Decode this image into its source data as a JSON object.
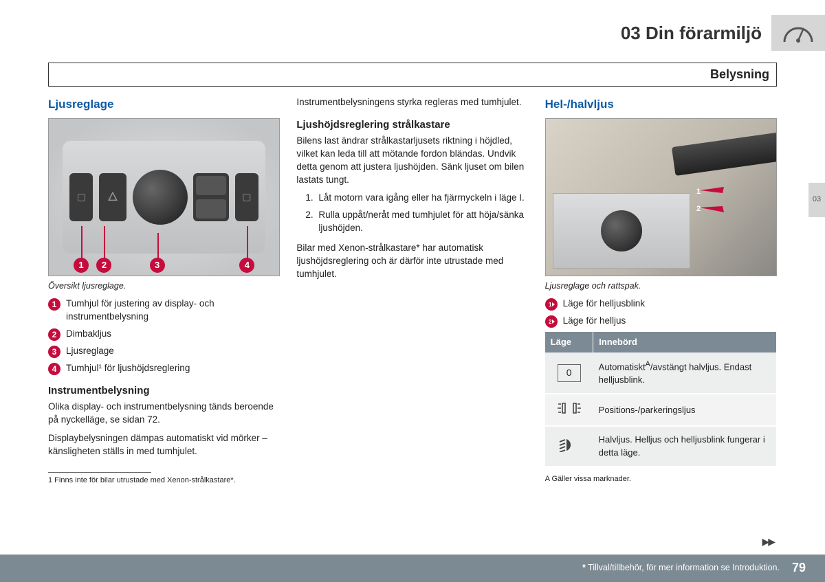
{
  "header": {
    "chapter": "03 Din förarmiljö"
  },
  "section_bar": "Belysning",
  "side_tab": "03",
  "col1": {
    "title": "Ljusreglage",
    "fig_callouts": [
      "1",
      "2",
      "3",
      "4"
    ],
    "caption": "Översikt ljusreglage.",
    "items": [
      "Tumhjul för justering av display- och instrumentbelysning",
      "Dimbakljus",
      "Ljusreglage",
      "Tumhjul¹ för ljushöjdsreglering"
    ],
    "sub_title": "Instrumentbelysning",
    "p1": "Olika display- och instrumentbelysning tänds beroende på nyckelläge, se sidan 72.",
    "p2": "Displaybelysningen dämpas automatiskt vid mörker – känsligheten ställs in med tumhjulet.",
    "footnote1": "1  Finns inte för bilar utrustade med Xenon-strålkastare*."
  },
  "col2": {
    "p0": "Instrumentbelysningens styrka regleras med tumhjulet.",
    "sub_title": "Ljushöjdsreglering strålkastare",
    "p1": "Bilens last ändrar strålkastarljusets riktning i höjdled, vilket kan leda till att mötande fordon bländas. Undvik detta genom att justera ljushöjden. Sänk ljuset om bilen lastats tungt.",
    "steps": [
      "Låt motorn vara igång eller ha fjärrnyckeln i läge I.",
      "Rulla uppåt/neråt med tumhjulet för att höja/sänka ljushöjden."
    ],
    "p2": "Bilar med Xenon-strålkastare* har automatisk ljushöjdsreglering och är därför inte utrustade med tumhjulet."
  },
  "col3": {
    "title": "Hel-/halvljus",
    "caption": "Ljusreglage och rattspak.",
    "items": [
      "Läge för helljusblink",
      "Läge för helljus"
    ],
    "table": {
      "headers": [
        "Läge",
        "Innebörd"
      ],
      "rows": [
        {
          "mode_label": "0",
          "icon": "zero",
          "desc_html": "Automatiskt<sup>A</sup>/avstängt halvljus. Endast helljusblink."
        },
        {
          "icon": "park",
          "desc_html": "Positions-/parkeringsljus"
        },
        {
          "icon": "lowbeam",
          "desc_html": "Halvljus. Helljus och helljusblink fungerar i detta läge."
        }
      ]
    },
    "footnoteA": "A  Gäller vissa marknader."
  },
  "footer": {
    "note": "Tillval/tillbehör, för mer information se Introduktion.",
    "asterisk": "*",
    "page": "79"
  },
  "colors": {
    "accent_red": "#c40d3c",
    "heading_blue": "#0a5aa6",
    "table_header": "#7b8a94",
    "footer_bg": "#7c8a93",
    "side_tab_bg": "#d6d6d6"
  }
}
